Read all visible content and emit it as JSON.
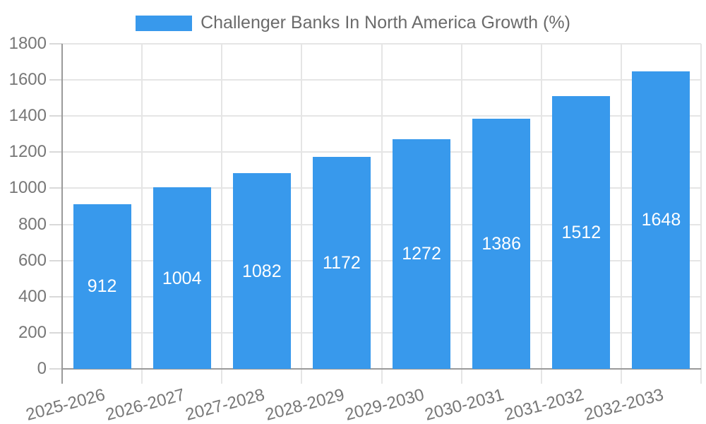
{
  "legend": {
    "series_label": "Challenger Banks In North America Growth (%)"
  },
  "chart_data": {
    "type": "bar",
    "title": "Challenger Banks In North America Growth (%)",
    "categories": [
      "2025-2026",
      "2026-2027",
      "2027-2028",
      "2028-2029",
      "2029-2030",
      "2030-2031",
      "2031-2032",
      "2032-2033"
    ],
    "values": [
      912,
      1004,
      1082,
      1172,
      1272,
      1386,
      1512,
      1648
    ],
    "xlabel": "",
    "ylabel": "",
    "ylim": [
      0,
      1800
    ],
    "yticks": [
      0,
      200,
      400,
      600,
      800,
      1000,
      1200,
      1400,
      1600,
      1800
    ],
    "grid": true,
    "legend_position": "top-center",
    "x_tick_rotation_deg": -15,
    "bar_value_labels_inside": true,
    "colors": {
      "bar": "#3899ec",
      "bar_label": "#ffffff",
      "grid": "#e5e5e5",
      "tick_mark": "#d9d9d9",
      "axis": "#9a9a9a",
      "tick_text": "#777777",
      "legend_text": "#6b6b6b",
      "background": "#ffffff"
    }
  }
}
